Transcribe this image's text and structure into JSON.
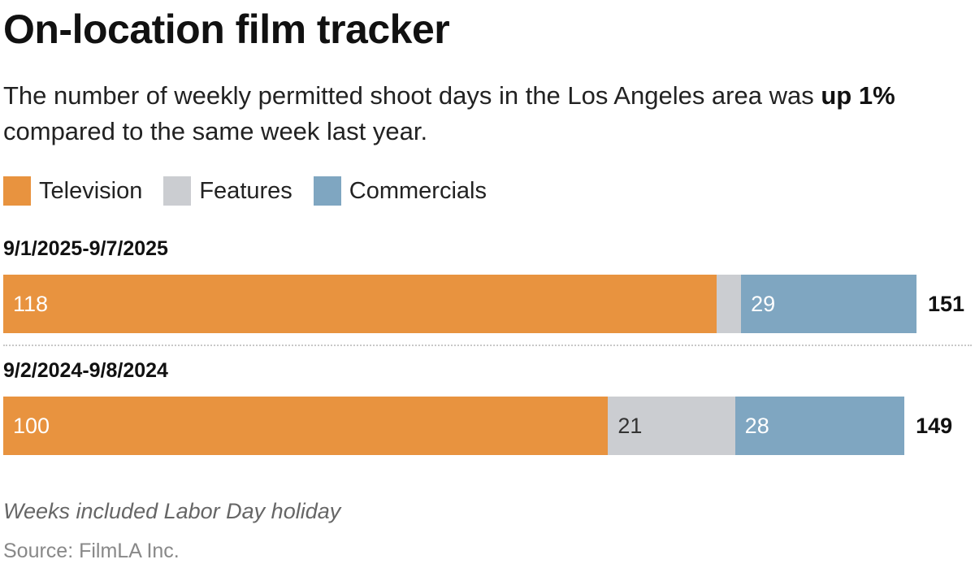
{
  "title": "On-location film tracker",
  "subtitle": {
    "before": "The number of weekly permitted shoot days in the Los Angeles area was ",
    "highlight": "up 1%",
    "after": " compared to the same week last year."
  },
  "note": "Weeks included Labor Day holiday",
  "source": "Source: FilmLA Inc.",
  "colors": {
    "television": "#e8933f",
    "features": "#cbcdd1",
    "commercials": "#7fa6c1"
  },
  "chart_data": {
    "type": "bar",
    "orientation": "horizontal",
    "stacked": true,
    "categories": [
      "9/1/2025-9/7/2025",
      "9/2/2024-9/8/2024"
    ],
    "series": [
      {
        "name": "Television",
        "values": [
          118,
          100
        ],
        "labels": [
          "118",
          "100"
        ]
      },
      {
        "name": "Features",
        "values": [
          4,
          21
        ],
        "labels": [
          "",
          "21"
        ]
      },
      {
        "name": "Commercials",
        "values": [
          29,
          28
        ],
        "labels": [
          "29",
          "28"
        ]
      }
    ],
    "totals": [
      151,
      149
    ],
    "total_labels": [
      "151",
      "149"
    ],
    "xlim": [
      0,
      151
    ],
    "grid": false,
    "legend": "top-left"
  }
}
